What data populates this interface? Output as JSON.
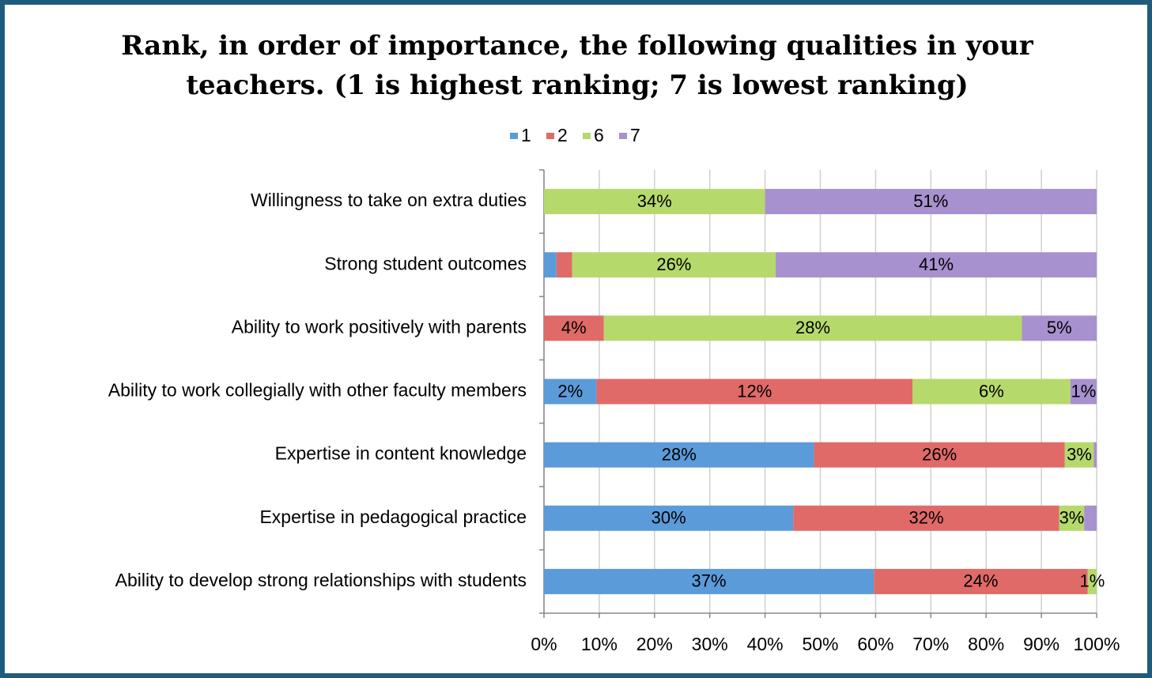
{
  "chart_data": {
    "type": "bar",
    "orientation": "horizontal",
    "stacked": "percent",
    "title": [
      "Rank, in order of importance, the following qualities in your",
      "teachers. (1 is highest ranking; 7 is lowest ranking)"
    ],
    "categories": [
      "Willingness to take on extra duties",
      "Strong student outcomes",
      "Ability to work positively with parents",
      "Ability to work collegially with other faculty members",
      "Expertise in content knowledge",
      "Expertise in pedagogical practice",
      "Ability to develop strong relationships with students"
    ],
    "series": [
      {
        "name": "1",
        "color": "#5b9bd9",
        "values": [
          0,
          1.6,
          0,
          2,
          28,
          30,
          37
        ],
        "value_labels": [
          null,
          null,
          null,
          "2%",
          "28%",
          "30%",
          "37%"
        ]
      },
      {
        "name": "2",
        "color": "#e06a68",
        "values": [
          0,
          2,
          4,
          12,
          26,
          32,
          24
        ],
        "value_labels": [
          null,
          null,
          "4%",
          "12%",
          "26%",
          "32%",
          "24%"
        ]
      },
      {
        "name": "6",
        "color": "#b6d96c",
        "values": [
          34,
          26,
          28,
          6,
          3,
          3,
          1
        ],
        "value_labels": [
          "34%",
          "26%",
          "28%",
          "6%",
          "3%",
          "3%",
          "1%"
        ]
      },
      {
        "name": "7",
        "color": "#a891cf",
        "values": [
          51,
          41,
          5,
          1,
          0.3,
          1.5,
          0
        ],
        "value_labels": [
          "51%",
          "41%",
          "5%",
          "1%",
          null,
          null,
          null
        ]
      }
    ],
    "xlim": [
      0,
      100
    ],
    "xticks": [
      {
        "value": 0,
        "label": "0%"
      },
      {
        "value": 10,
        "label": "10%"
      },
      {
        "value": 20,
        "label": "20%"
      },
      {
        "value": 30,
        "label": "30%"
      },
      {
        "value": 40,
        "label": "40%"
      },
      {
        "value": 50,
        "label": "50%"
      },
      {
        "value": 60,
        "label": "60%"
      },
      {
        "value": 70,
        "label": "70%"
      },
      {
        "value": 80,
        "label": "80%"
      },
      {
        "value": 90,
        "label": "90%"
      },
      {
        "value": 100,
        "label": "100%"
      }
    ],
    "grid": true,
    "legend": "top"
  }
}
